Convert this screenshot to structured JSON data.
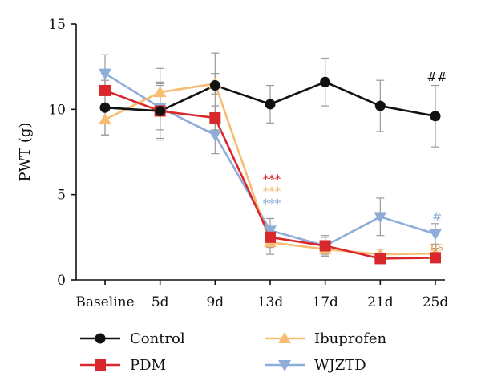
{
  "chart_data": {
    "type": "line",
    "ylabel": "PWT (g)",
    "xlabel": "",
    "ylim": [
      0,
      15
    ],
    "yticks": [
      0,
      5,
      10,
      15
    ],
    "categories": [
      "Baseline",
      "5d",
      "9d",
      "13d",
      "17d",
      "21d",
      "25d"
    ],
    "legend_position": "bottom",
    "grid": false,
    "series": [
      {
        "name": "Control",
        "color": "#111111",
        "marker": "circle",
        "values": [
          10.1,
          9.9,
          11.4,
          10.3,
          11.6,
          10.2,
          9.6
        ],
        "errors": [
          1.6,
          1.7,
          1.9,
          1.1,
          1.4,
          1.5,
          1.8
        ]
      },
      {
        "name": "PDM",
        "color": "#d8282c",
        "marker": "square",
        "values": [
          11.1,
          9.9,
          9.5,
          2.5,
          2.0,
          1.25,
          1.3
        ],
        "errors": [
          1.0,
          1.6,
          0.7,
          0.6,
          0.5,
          0.2,
          0.2
        ]
      },
      {
        "name": "Ibuprofen",
        "color": "#f6bd73",
        "marker": "triangle-up",
        "values": [
          9.4,
          11.0,
          11.5,
          2.2,
          1.8,
          1.5,
          1.55
        ],
        "errors": [
          0.9,
          1.4,
          0.6,
          0.7,
          0.4,
          0.3,
          0.3
        ]
      },
      {
        "name": "WJZTD",
        "color": "#8eadd8",
        "marker": "triangle-down",
        "values": [
          12.1,
          10.1,
          8.5,
          2.9,
          2.0,
          3.7,
          2.7
        ],
        "errors": [
          1.1,
          1.3,
          1.1,
          0.7,
          0.6,
          1.1,
          0.6
        ]
      }
    ],
    "annotations": [
      {
        "text": "##",
        "category": "25d",
        "y": 11.9,
        "color": "#111111"
      },
      {
        "text": "***",
        "category": "13d",
        "y": 5.9,
        "color": "#d8282c"
      },
      {
        "text": "***",
        "category": "13d",
        "y": 5.2,
        "color": "#f6bd73"
      },
      {
        "text": "***",
        "category": "13d",
        "y": 4.5,
        "color": "#8eadd8"
      },
      {
        "text": "#",
        "category": "25d",
        "y": 3.7,
        "color": "#8eadd8"
      },
      {
        "text": "ns",
        "category": "25d",
        "y": 1.95,
        "color": "#e8a05a"
      }
    ]
  }
}
